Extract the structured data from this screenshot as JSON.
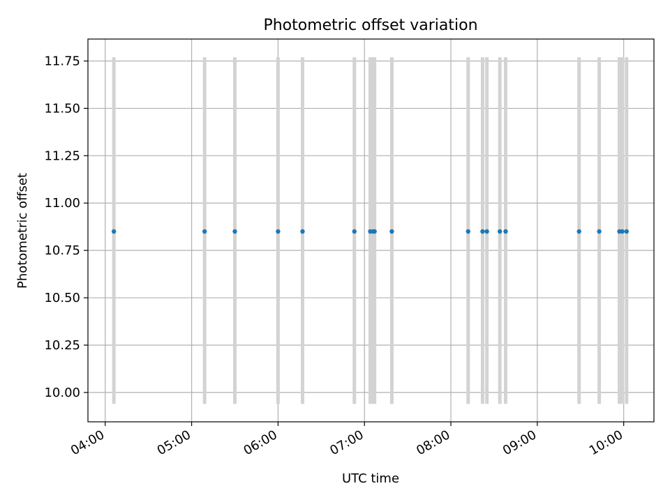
{
  "chart_data": {
    "type": "scatter",
    "title": "Photometric offset variation",
    "xlabel": "UTC time",
    "ylabel": "Photometric offset",
    "x_is_time": true,
    "xlim": [
      "03:48",
      "10:21"
    ],
    "ylim": [
      9.845,
      11.866
    ],
    "xticks": [
      "04:00",
      "05:00",
      "06:00",
      "07:00",
      "08:00",
      "09:00",
      "10:00"
    ],
    "yticks": [
      "10.00",
      "10.25",
      "10.50",
      "10.75",
      "11.00",
      "11.25",
      "11.50",
      "11.75"
    ],
    "grid": true,
    "legend": "none",
    "point_color": "#1f77b4",
    "bar_color": "#d3d3d3",
    "error_range": [
      9.94,
      11.77
    ],
    "points": [
      {
        "time": "04:06",
        "y": 10.85
      },
      {
        "time": "05:09",
        "y": 10.85
      },
      {
        "time": "05:30",
        "y": 10.85
      },
      {
        "time": "06:00",
        "y": 10.85
      },
      {
        "time": "06:17",
        "y": 10.85
      },
      {
        "time": "06:53",
        "y": 10.85
      },
      {
        "time": "07:04",
        "y": 10.85
      },
      {
        "time": "07:06",
        "y": 10.85
      },
      {
        "time": "07:07",
        "y": 10.85
      },
      {
        "time": "07:19",
        "y": 10.85
      },
      {
        "time": "08:12",
        "y": 10.85
      },
      {
        "time": "08:22",
        "y": 10.85
      },
      {
        "time": "08:25",
        "y": 10.85
      },
      {
        "time": "08:34",
        "y": 10.85
      },
      {
        "time": "08:38",
        "y": 10.85
      },
      {
        "time": "09:29",
        "y": 10.85
      },
      {
        "time": "09:43",
        "y": 10.85
      },
      {
        "time": "09:57",
        "y": 10.85
      },
      {
        "time": "09:59",
        "y": 10.85
      },
      {
        "time": "10:02",
        "y": 10.85
      }
    ]
  }
}
